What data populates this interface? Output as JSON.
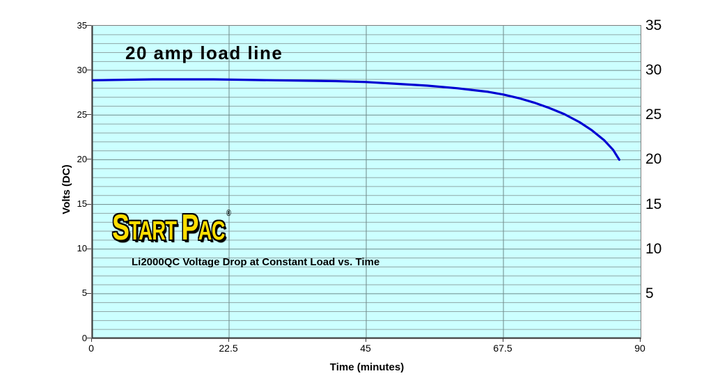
{
  "chart_data": {
    "type": "line",
    "title": "20 amp load line",
    "subtitle": "Li2000QC Voltage Drop at Constant Load vs. Time",
    "xlabel": "Time (minutes)",
    "ylabel": "Volts (DC)",
    "xlim": [
      0,
      90
    ],
    "ylim": [
      0,
      35
    ],
    "x_ticks": {
      "values": [
        0,
        22.5,
        45,
        67.5,
        90
      ],
      "labels": [
        "0",
        "22.5",
        "45",
        "67.5",
        "90"
      ]
    },
    "y_ticks_left": {
      "values": [
        0,
        5,
        10,
        15,
        20,
        25,
        30,
        35
      ],
      "labels": [
        "0",
        "5",
        "10",
        "15",
        "20",
        "25",
        "30",
        "35"
      ]
    },
    "y_ticks_right": {
      "values": [
        5,
        10,
        15,
        20,
        25,
        30,
        35
      ],
      "labels": [
        "5",
        "10",
        "15",
        "20",
        "25",
        "30",
        "35"
      ]
    },
    "y_minor_step": 1,
    "grid": "horizontal minor every 1V, vertical at major ticks only",
    "legend": "none",
    "series": [
      {
        "name": "20 amp load line",
        "color": "#0000D2",
        "x": [
          0,
          5,
          10,
          15,
          20,
          25,
          30,
          35,
          40,
          45,
          50,
          55,
          60,
          62.5,
          65,
          67.5,
          70,
          72.5,
          75,
          77.5,
          80,
          82,
          84,
          85.5,
          86.5
        ],
        "y": [
          28.9,
          28.95,
          29.0,
          29.0,
          29.0,
          28.95,
          28.9,
          28.85,
          28.8,
          28.7,
          28.5,
          28.3,
          28.0,
          27.8,
          27.6,
          27.3,
          26.9,
          26.4,
          25.8,
          25.1,
          24.2,
          23.3,
          22.2,
          21.1,
          20.0
        ]
      }
    ]
  },
  "logo": {
    "s1": "S",
    "s2": "TART",
    "s3": "P",
    "s4": "AC",
    "reg": "®"
  },
  "colors": {
    "page_background": "#FFFFFF",
    "plot_background": "#CCFFFF",
    "line": "#0000D2",
    "gridline_minor": "#8FA6A6",
    "gridline_major": "#6E8A8A",
    "plot_border": "#7D7D7D",
    "axis": "#3A3A3A",
    "logo_yellow": "#FFDE00",
    "text": "#000000"
  }
}
